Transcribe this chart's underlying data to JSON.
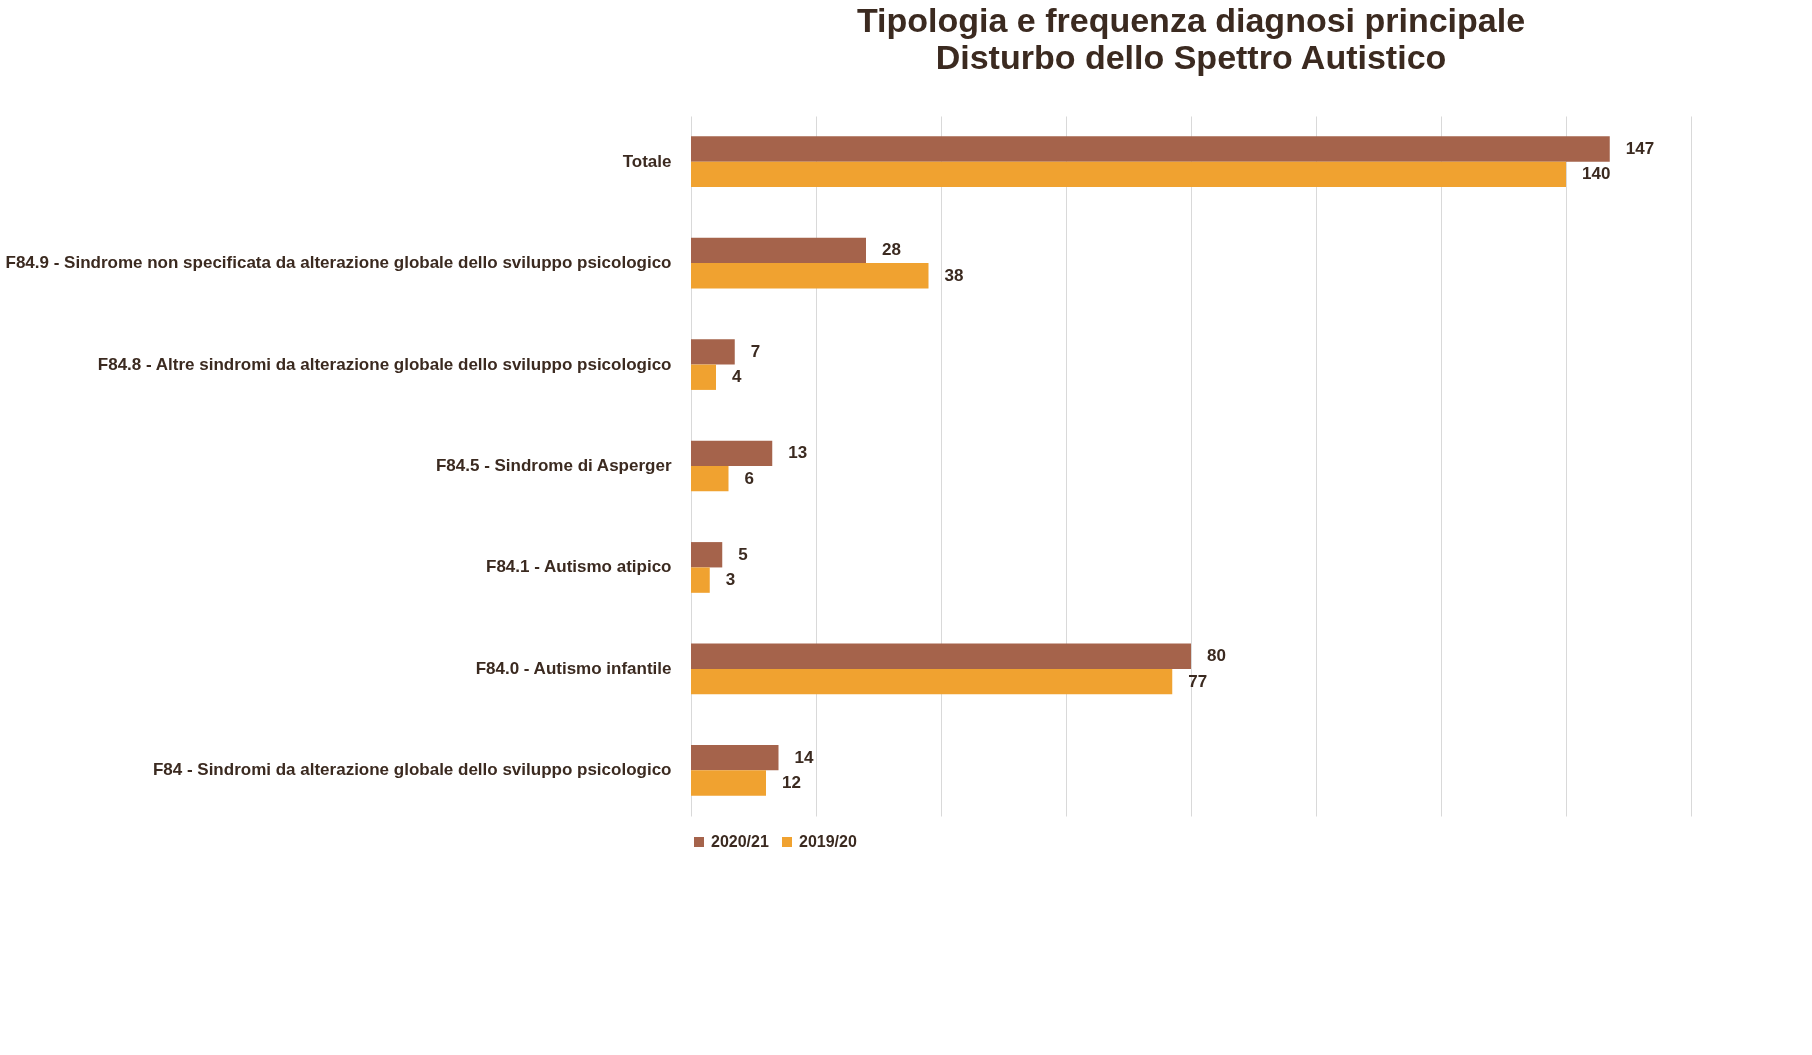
{
  "chart_data": {
    "type": "bar",
    "orientation": "horizontal",
    "title": "Tipologia e frequenza diagnosi principale",
    "subtitle": "Disturbo dello Spettro Autistico",
    "categories": [
      "Totale",
      "F84.9 - Sindrome non specificata da alterazione globale dello sviluppo psicologico",
      "F84.8 - Altre sindromi da alterazione globale dello sviluppo psicologico",
      "F84.5 - Sindrome di Asperger",
      "F84.1 - Autismo atipico",
      "F84.0 - Autismo infantile",
      "F84 - Sindromi da alterazione globale dello sviluppo psicologico"
    ],
    "series": [
      {
        "name": "2020/21",
        "color": "#a5634b",
        "values": [
          147,
          28,
          7,
          13,
          5,
          80,
          14
        ]
      },
      {
        "name": "2019/20",
        "color": "#f0a230",
        "values": [
          140,
          38,
          4,
          6,
          3,
          77,
          12
        ]
      }
    ],
    "xlim": [
      0,
      160
    ],
    "xticks": [
      {
        "value": 0,
        "label": null
      },
      {
        "value": 20,
        "label": null
      },
      {
        "value": 40,
        "label": null
      },
      {
        "value": 60,
        "label": null
      },
      {
        "value": 80,
        "label": null
      },
      {
        "value": 100,
        "label": null
      },
      {
        "value": 120,
        "label": null
      },
      {
        "value": 140,
        "label": null
      },
      {
        "value": 160,
        "label": null
      }
    ],
    "tick_labels": "y",
    "grid": "x",
    "legend": "bottom",
    "data_labels": true
  }
}
